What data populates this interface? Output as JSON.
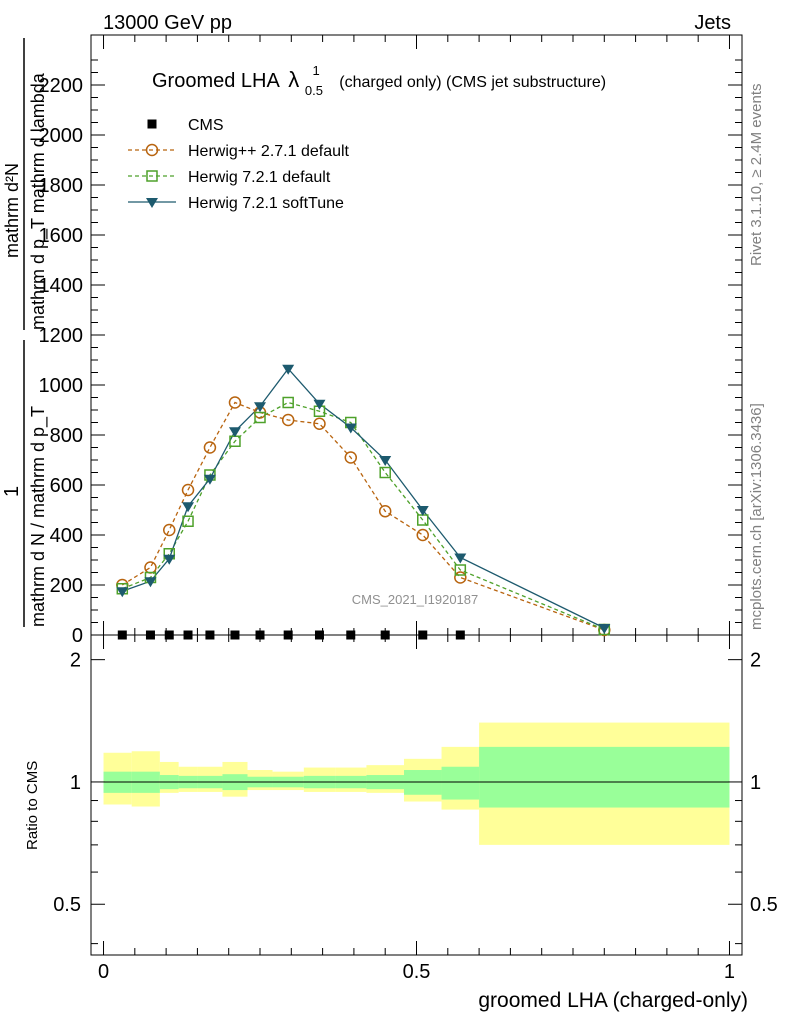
{
  "header": {
    "left": "13000 GeV pp",
    "right": "Jets"
  },
  "side_labels": {
    "rivet": "Rivet 3.1.10, ≥ 2.4M events",
    "mcplots": "mcplots.cern.ch [arXiv:1306.3436]"
  },
  "main_title": {
    "prefix": "Groomed LHA",
    "lambda": "λ",
    "sup": "1",
    "sub": "0.5",
    "suffix": "(charged only) (CMS jet substructure)"
  },
  "watermark": "CMS_2021_I1920187",
  "y_axis_label": {
    "main_numer": "mathrm d²N",
    "main_denom": "mathrm d p_T mathrm d lambda",
    "main_prefix": "1",
    "main_prefix_denom": "mathrm d N / mathrm d p_T"
  },
  "ratio_ylabel": "Ratio to CMS",
  "xlabel": "groomed LHA (charged-only)",
  "colors": {
    "cms": "#000000",
    "herwigpp": "#b8640f",
    "herwig721": "#4ea12a",
    "softtune": "#1d5a6e",
    "band_inner": "#99ff99",
    "band_outer": "#ffff99"
  },
  "chart_data": {
    "type": "line",
    "x_ticks": [
      "0",
      "0.5",
      "1"
    ],
    "xlim": [
      -0.02,
      1.02
    ],
    "main": {
      "ylim": [
        0,
        2400
      ],
      "y_ticks": [
        "0",
        "200",
        "400",
        "600",
        "800",
        "1000",
        "1200",
        "1400",
        "1600",
        "1800",
        "2000",
        "2200"
      ],
      "series": [
        {
          "name": "CMS",
          "marker": "square",
          "x": [
            0.03,
            0.075,
            0.105,
            0.135,
            0.17,
            0.21,
            0.25,
            0.295,
            0.345,
            0.395,
            0.45,
            0.51,
            0.57
          ],
          "y": [
            0,
            0,
            0,
            0,
            0,
            0,
            0,
            0,
            0,
            0,
            0,
            0,
            0
          ]
        },
        {
          "name": "Herwig++ 2.7.1 default",
          "marker": "circle",
          "x": [
            0.03,
            0.075,
            0.105,
            0.135,
            0.17,
            0.21,
            0.25,
            0.295,
            0.345,
            0.395,
            0.45,
            0.51,
            0.57,
            0.8
          ],
          "y": [
            200,
            270,
            420,
            580,
            750,
            930,
            890,
            860,
            845,
            710,
            495,
            400,
            230,
            20
          ]
        },
        {
          "name": "Herwig 7.2.1 default",
          "marker": "open-square",
          "x": [
            0.03,
            0.075,
            0.105,
            0.135,
            0.17,
            0.21,
            0.25,
            0.295,
            0.345,
            0.395,
            0.45,
            0.51,
            0.57,
            0.8
          ],
          "y": [
            185,
            230,
            325,
            455,
            640,
            775,
            870,
            930,
            895,
            850,
            650,
            460,
            260,
            22
          ]
        },
        {
          "name": "Herwig 7.2.1 softTune",
          "marker": "triangle-down",
          "x": [
            0.03,
            0.075,
            0.105,
            0.135,
            0.17,
            0.21,
            0.25,
            0.295,
            0.345,
            0.395,
            0.45,
            0.51,
            0.57,
            0.8
          ],
          "y": [
            175,
            215,
            305,
            515,
            625,
            815,
            915,
            1065,
            925,
            830,
            700,
            500,
            310,
            28
          ]
        }
      ]
    },
    "ratio": {
      "ylim": [
        0.375,
        2.3
      ],
      "y_ticks": [
        "0.5",
        "1",
        "2"
      ],
      "reference": 1,
      "bands": [
        {
          "x0": 0.0,
          "x1": 0.045,
          "inner": [
            0.94,
            1.06
          ],
          "outer": [
            0.88,
            1.18
          ]
        },
        {
          "x0": 0.045,
          "x1": 0.09,
          "inner": [
            0.94,
            1.06
          ],
          "outer": [
            0.87,
            1.19
          ]
        },
        {
          "x0": 0.09,
          "x1": 0.12,
          "inner": [
            0.96,
            1.04
          ],
          "outer": [
            0.94,
            1.12
          ]
        },
        {
          "x0": 0.12,
          "x1": 0.15,
          "inner": [
            0.965,
            1.035
          ],
          "outer": [
            0.945,
            1.09
          ]
        },
        {
          "x0": 0.15,
          "x1": 0.19,
          "inner": [
            0.965,
            1.035
          ],
          "outer": [
            0.945,
            1.09
          ]
        },
        {
          "x0": 0.19,
          "x1": 0.23,
          "inner": [
            0.955,
            1.045
          ],
          "outer": [
            0.92,
            1.12
          ]
        },
        {
          "x0": 0.23,
          "x1": 0.27,
          "inner": [
            0.97,
            1.03
          ],
          "outer": [
            0.955,
            1.07
          ]
        },
        {
          "x0": 0.27,
          "x1": 0.32,
          "inner": [
            0.97,
            1.03
          ],
          "outer": [
            0.955,
            1.06
          ]
        },
        {
          "x0": 0.32,
          "x1": 0.37,
          "inner": [
            0.965,
            1.035
          ],
          "outer": [
            0.945,
            1.085
          ]
        },
        {
          "x0": 0.37,
          "x1": 0.42,
          "inner": [
            0.965,
            1.035
          ],
          "outer": [
            0.945,
            1.085
          ]
        },
        {
          "x0": 0.42,
          "x1": 0.48,
          "inner": [
            0.96,
            1.04
          ],
          "outer": [
            0.94,
            1.1
          ]
        },
        {
          "x0": 0.48,
          "x1": 0.54,
          "inner": [
            0.93,
            1.07
          ],
          "outer": [
            0.895,
            1.14
          ]
        },
        {
          "x0": 0.54,
          "x1": 0.6,
          "inner": [
            0.905,
            1.09
          ],
          "outer": [
            0.855,
            1.22
          ]
        },
        {
          "x0": 0.6,
          "x1": 1.0,
          "inner": [
            0.865,
            1.22
          ],
          "outer": [
            0.7,
            1.4
          ]
        }
      ]
    }
  }
}
